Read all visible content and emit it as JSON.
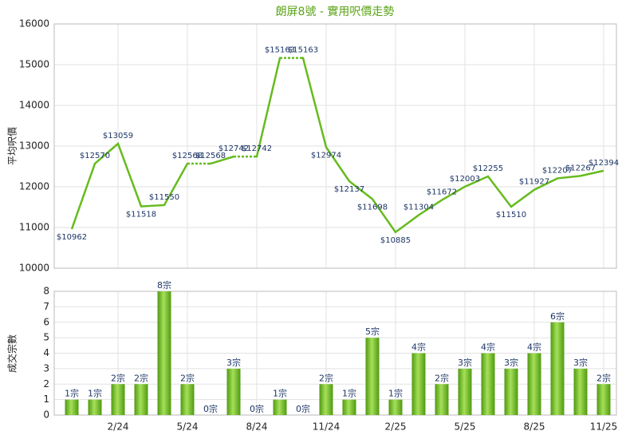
{
  "chart_data": [
    {
      "type": "line",
      "title": "朗屏8號 - 實用呎價走勢",
      "y_label": "平均呎價",
      "color": "#66bb1e",
      "values": [
        10962,
        12570,
        13059,
        11518,
        11550,
        12568,
        12568,
        12742,
        12742,
        15163,
        15163,
        12974,
        12137,
        11698,
        10885,
        11304,
        11672,
        12003,
        12255,
        11510,
        11927,
        12207,
        12267,
        12394
      ],
      "value_labels": [
        "$10962",
        "$12570",
        "$13059",
        "$11518",
        "$11550",
        "$12568",
        "$12568",
        "$12742",
        "$12742",
        "$15163",
        "$15163",
        "$12974",
        "$12137",
        "$11698",
        "$10885",
        "$11304",
        "$11672",
        "$12003",
        "$12255",
        "$11510",
        "$11927",
        "$12207",
        "$12267",
        "$12394"
      ],
      "ylim": [
        10000,
        16000
      ],
      "yticks": [
        10000,
        11000,
        12000,
        13000,
        14000,
        15000,
        16000
      ],
      "grid": true
    },
    {
      "type": "bar",
      "y_label": "成交宗數",
      "color": "#6cbf1e",
      "categories": [
        null,
        null,
        "2/24",
        null,
        null,
        "5/24",
        null,
        null,
        "8/24",
        null,
        null,
        "11/24",
        null,
        null,
        "2/25",
        null,
        null,
        "5/25",
        null,
        null,
        "8/25",
        null,
        null,
        "11/25"
      ],
      "values": [
        1,
        1,
        2,
        2,
        8,
        2,
        0,
        3,
        0,
        1,
        0,
        2,
        1,
        5,
        1,
        4,
        2,
        3,
        4,
        3,
        4,
        6,
        3,
        2
      ],
      "value_labels": [
        "1宗",
        "1宗",
        "2宗",
        "2宗",
        "8宗",
        "2宗",
        "0宗",
        "3宗",
        "0宗",
        "1宗",
        "0宗",
        "2宗",
        "1宗",
        "5宗",
        "1宗",
        "4宗",
        "2宗",
        "3宗",
        "4宗",
        "3宗",
        "4宗",
        "6宗",
        "3宗",
        "2宗"
      ],
      "ylim": [
        0,
        8
      ],
      "yticks": [
        0,
        1,
        2,
        3,
        4,
        5,
        6,
        7,
        8
      ],
      "grid": true
    }
  ]
}
